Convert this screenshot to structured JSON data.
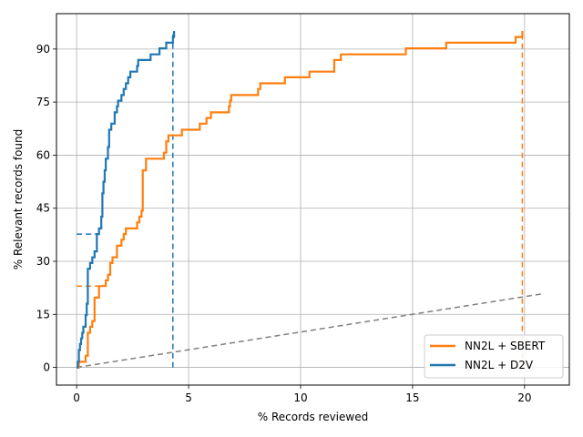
{
  "chart_data": {
    "type": "line",
    "title": "",
    "xlabel": "% Records reviewed",
    "ylabel": "% Relevant records found",
    "xlim": [
      -0.9,
      22.0
    ],
    "ylim": [
      -5,
      100
    ],
    "xticks": [
      0,
      5,
      10,
      15,
      20
    ],
    "yticks": [
      0,
      15,
      30,
      45,
      60,
      75,
      90
    ],
    "grid": true,
    "legend_position": "bottom-right",
    "series": [
      {
        "name": "NN2L + SBERT",
        "color": "#ff7f0e",
        "step": true,
        "points": [
          [
            0.0,
            0.0
          ],
          [
            0.1,
            1.6
          ],
          [
            0.4,
            3.3
          ],
          [
            0.5,
            9.8
          ],
          [
            0.6,
            11.5
          ],
          [
            0.7,
            13.1
          ],
          [
            0.8,
            19.7
          ],
          [
            1.0,
            23.0
          ],
          [
            1.3,
            24.6
          ],
          [
            1.4,
            26.2
          ],
          [
            1.5,
            29.5
          ],
          [
            1.6,
            31.1
          ],
          [
            1.8,
            34.4
          ],
          [
            2.0,
            36.1
          ],
          [
            2.1,
            37.7
          ],
          [
            2.2,
            39.3
          ],
          [
            2.7,
            41.0
          ],
          [
            2.8,
            42.6
          ],
          [
            2.9,
            44.3
          ],
          [
            2.95,
            55.7
          ],
          [
            3.1,
            59.0
          ],
          [
            3.9,
            60.7
          ],
          [
            4.0,
            63.9
          ],
          [
            4.1,
            65.6
          ],
          [
            4.7,
            67.2
          ],
          [
            5.5,
            68.9
          ],
          [
            5.8,
            70.5
          ],
          [
            6.0,
            72.1
          ],
          [
            6.8,
            73.8
          ],
          [
            6.85,
            75.4
          ],
          [
            6.9,
            77.0
          ],
          [
            8.1,
            78.7
          ],
          [
            8.2,
            80.3
          ],
          [
            9.3,
            82.0
          ],
          [
            10.4,
            83.6
          ],
          [
            11.5,
            86.9
          ],
          [
            11.8,
            88.5
          ],
          [
            14.7,
            90.2
          ],
          [
            16.5,
            91.8
          ],
          [
            19.6,
            93.4
          ],
          [
            19.9,
            95.1
          ]
        ]
      },
      {
        "name": "NN2L + D2V",
        "color": "#1f77b4",
        "step": true,
        "points": [
          [
            0.0,
            0.0
          ],
          [
            0.05,
            1.6
          ],
          [
            0.1,
            4.9
          ],
          [
            0.15,
            6.6
          ],
          [
            0.2,
            8.2
          ],
          [
            0.25,
            9.8
          ],
          [
            0.3,
            11.5
          ],
          [
            0.4,
            14.8
          ],
          [
            0.45,
            18.0
          ],
          [
            0.5,
            27.9
          ],
          [
            0.6,
            29.5
          ],
          [
            0.7,
            31.1
          ],
          [
            0.8,
            32.8
          ],
          [
            0.9,
            37.7
          ],
          [
            1.0,
            39.3
          ],
          [
            1.1,
            42.6
          ],
          [
            1.15,
            49.2
          ],
          [
            1.2,
            52.5
          ],
          [
            1.25,
            55.7
          ],
          [
            1.3,
            59.0
          ],
          [
            1.4,
            62.3
          ],
          [
            1.45,
            67.2
          ],
          [
            1.55,
            68.9
          ],
          [
            1.7,
            72.1
          ],
          [
            1.8,
            73.8
          ],
          [
            1.85,
            75.4
          ],
          [
            2.0,
            77.0
          ],
          [
            2.1,
            78.7
          ],
          [
            2.2,
            80.3
          ],
          [
            2.3,
            82.0
          ],
          [
            2.4,
            83.6
          ],
          [
            2.7,
            85.2
          ],
          [
            2.75,
            86.9
          ],
          [
            3.3,
            88.5
          ],
          [
            3.7,
            90.2
          ],
          [
            3.9,
            90.2
          ],
          [
            4.0,
            91.8
          ],
          [
            4.3,
            93.4
          ],
          [
            4.35,
            95.1
          ]
        ]
      }
    ],
    "reference_lines": [
      {
        "name": "",
        "color": "#1f77b4",
        "style": "dashed",
        "points": [
          [
            0.0,
            37.7
          ],
          [
            0.9,
            37.7
          ]
        ]
      },
      {
        "name": "",
        "color": "#1f77b4",
        "style": "dashed",
        "points": [
          [
            4.3,
            0.0
          ],
          [
            4.3,
            95.1
          ]
        ]
      },
      {
        "name": "",
        "color": "#ff7f0e",
        "style": "dashed",
        "points": [
          [
            0.0,
            23.0
          ],
          [
            1.0,
            23.0
          ]
        ]
      },
      {
        "name": "",
        "color": "#ff7f0e",
        "style": "dashed",
        "points": [
          [
            19.9,
            0.0
          ],
          [
            19.9,
            95.1
          ]
        ]
      },
      {
        "name": "",
        "color": "#808080",
        "style": "dashed",
        "points": [
          [
            0.0,
            0.0
          ],
          [
            20.8,
            20.8
          ]
        ]
      }
    ]
  }
}
